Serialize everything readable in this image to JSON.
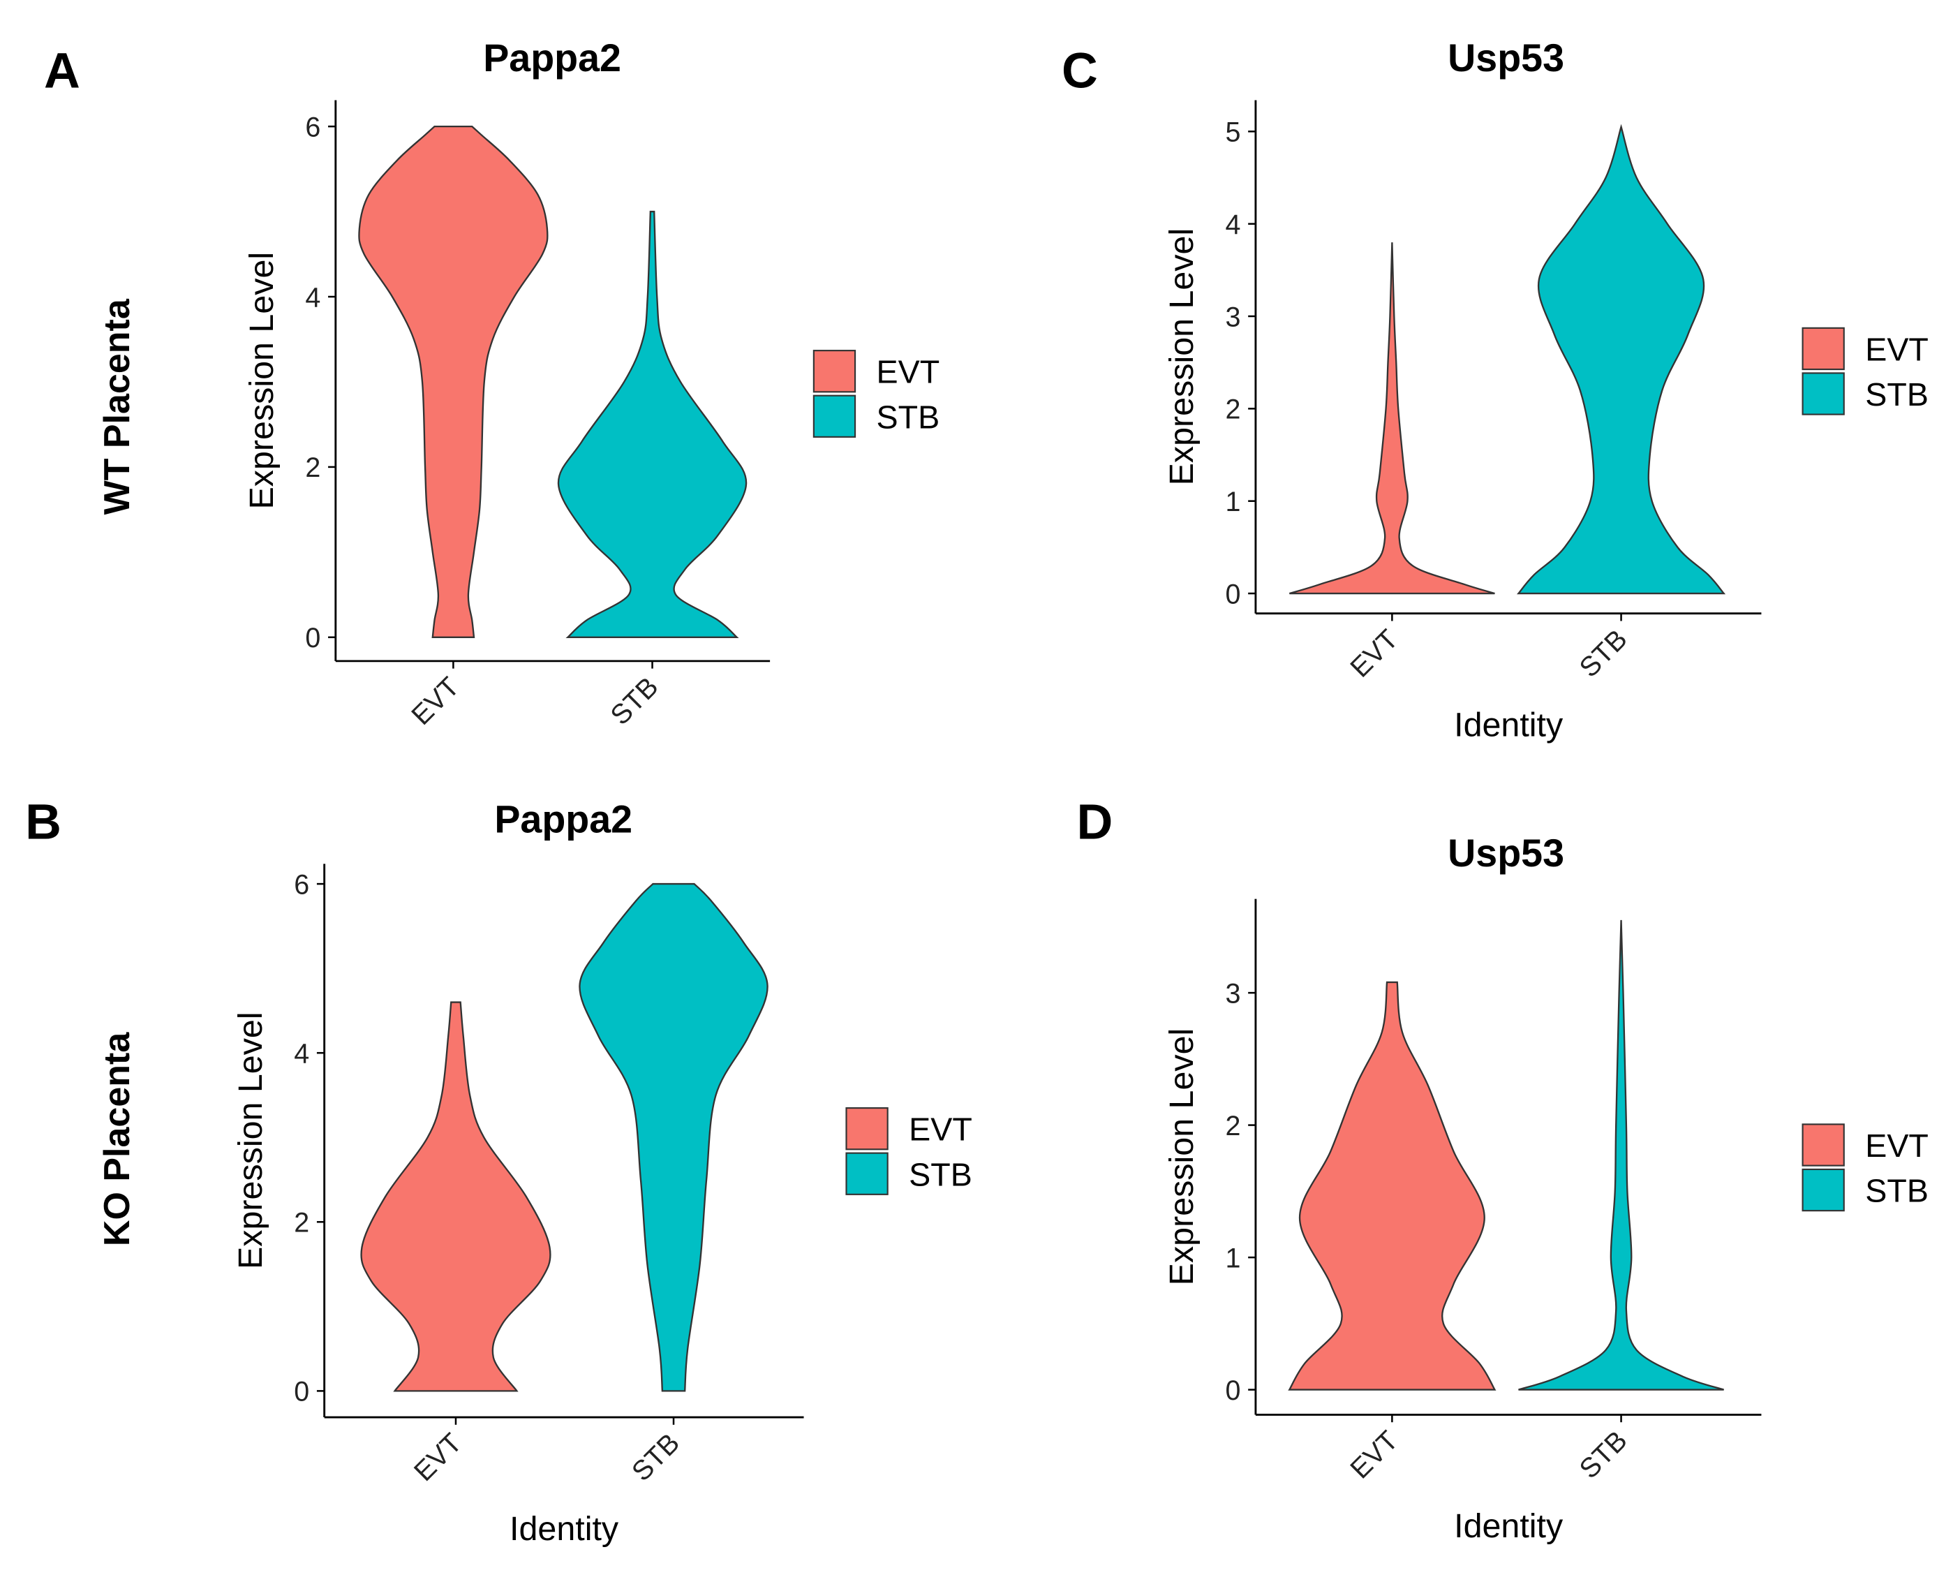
{
  "row_labels": [
    "WT Placenta",
    "KO Placenta"
  ],
  "chart_data": [
    {
      "type": "violin",
      "panel_label": "A",
      "title": "Pappa2",
      "xlabel": "",
      "ylabel": "Expression Level",
      "categories": [
        "EVT",
        "STB"
      ],
      "yticks": [
        0,
        2,
        4,
        6
      ],
      "ylim": [
        0,
        6
      ],
      "legend": {
        "position": "right",
        "entries": [
          "EVT",
          "STB"
        ]
      },
      "series": [
        {
          "name": "EVT",
          "color": "#F8766D",
          "profile_y": [
            0,
            0.2,
            0.5,
            1,
            1.5,
            2,
            3,
            3.5,
            4,
            4.5,
            4.8,
            5.2,
            5.6,
            5.9,
            6
          ],
          "density": [
            0.22,
            0.2,
            0.16,
            0.22,
            0.28,
            0.3,
            0.33,
            0.42,
            0.65,
            0.95,
            1,
            0.9,
            0.6,
            0.3,
            0.2
          ]
        },
        {
          "name": "STB",
          "color": "#00BFC4",
          "profile_y": [
            0,
            0.2,
            0.5,
            0.8,
            1.2,
            1.8,
            2.3,
            3,
            3.5,
            4,
            5
          ],
          "density": [
            0.9,
            0.7,
            0.25,
            0.35,
            0.7,
            1,
            0.75,
            0.3,
            0.1,
            0.05,
            0.02
          ]
        }
      ]
    },
    {
      "type": "violin",
      "panel_label": "B",
      "title": "Pappa2",
      "xlabel": "Identity",
      "ylabel": "Expression Level",
      "categories": [
        "EVT",
        "STB"
      ],
      "yticks": [
        0,
        2,
        4,
        6
      ],
      "ylim": [
        0,
        6
      ],
      "legend": {
        "position": "right",
        "entries": [
          "EVT",
          "STB"
        ]
      },
      "series": [
        {
          "name": "EVT",
          "color": "#F8766D",
          "profile_y": [
            0,
            0.4,
            0.8,
            1.3,
            1.7,
            2.3,
            3,
            3.5,
            4.2,
            4.6
          ],
          "density": [
            0.65,
            0.4,
            0.5,
            0.9,
            1,
            0.75,
            0.3,
            0.15,
            0.08,
            0.05
          ]
        },
        {
          "name": "STB",
          "color": "#00BFC4",
          "profile_y": [
            0,
            0.5,
            1.5,
            2.5,
            3.5,
            4.2,
            4.8,
            5.3,
            5.8,
            6
          ],
          "density": [
            0.12,
            0.15,
            0.28,
            0.35,
            0.45,
            0.8,
            1,
            0.75,
            0.4,
            0.22
          ]
        }
      ]
    },
    {
      "type": "violin",
      "panel_label": "C",
      "title": "Usp53",
      "xlabel": "Identity",
      "ylabel": "Expression Level",
      "categories": [
        "EVT",
        "STB"
      ],
      "yticks": [
        0,
        1,
        2,
        3,
        4,
        5
      ],
      "ylim": [
        0,
        5
      ],
      "legend": {
        "position": "right",
        "entries": [
          "EVT",
          "STB"
        ]
      },
      "series": [
        {
          "name": "EVT",
          "color": "#F8766D",
          "profile_y": [
            0,
            0.1,
            0.3,
            0.6,
            1,
            1.3,
            2,
            2.5,
            3,
            3.8
          ],
          "density": [
            1,
            0.7,
            0.2,
            0.07,
            0.15,
            0.12,
            0.06,
            0.04,
            0.02,
            0
          ]
        },
        {
          "name": "STB",
          "color": "#00BFC4",
          "profile_y": [
            0,
            0.2,
            0.5,
            1,
            1.5,
            2.2,
            2.8,
            3.4,
            4,
            4.5,
            5.05
          ],
          "density": [
            1,
            0.85,
            0.55,
            0.3,
            0.28,
            0.4,
            0.65,
            0.8,
            0.45,
            0.15,
            0
          ]
        }
      ]
    },
    {
      "type": "violin",
      "panel_label": "D",
      "title": "Usp53",
      "xlabel": "Identity",
      "ylabel": "Expression Level",
      "categories": [
        "EVT",
        "STB"
      ],
      "yticks": [
        0,
        1,
        2,
        3
      ],
      "ylim": [
        0,
        3.6
      ],
      "legend": {
        "position": "right",
        "entries": [
          "EVT",
          "STB"
        ]
      },
      "series": [
        {
          "name": "EVT",
          "color": "#F8766D",
          "profile_y": [
            0,
            0.2,
            0.5,
            0.8,
            1.3,
            1.8,
            2.3,
            2.7,
            3.08
          ],
          "density": [
            1,
            0.85,
            0.5,
            0.6,
            0.9,
            0.6,
            0.35,
            0.1,
            0.05
          ]
        },
        {
          "name": "STB",
          "color": "#00BFC4",
          "profile_y": [
            0,
            0.1,
            0.3,
            0.6,
            1,
            1.5,
            2,
            3,
            3.55
          ],
          "density": [
            1,
            0.6,
            0.15,
            0.05,
            0.1,
            0.06,
            0.05,
            0.02,
            0
          ]
        }
      ]
    }
  ]
}
